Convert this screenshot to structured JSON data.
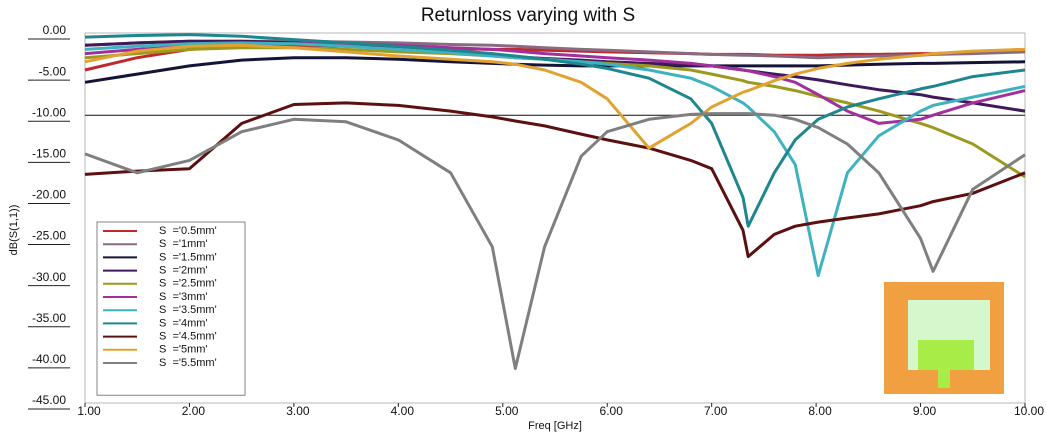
{
  "chart_data": {
    "type": "line",
    "title": "Returnloss varying with S",
    "x_label": "Freq [GHz]",
    "y_label": "dB(S(1,1))",
    "x": [
      1,
      1.5,
      2,
      2.5,
      3,
      3.5,
      4,
      4.5,
      4.9,
      5.12,
      5.4,
      5.75,
      6,
      6.4,
      6.8,
      7,
      7.3,
      7.35,
      7.6,
      7.8,
      8.02,
      8.3,
      8.6,
      9,
      9.12,
      9.5,
      10
    ],
    "series": [
      {
        "name": "S  ='0.5mm'",
        "color": "#c0282e",
        "values": [
          -4.5,
          -3,
          -2,
          -1.6,
          -1.5,
          -1.6,
          -1.8,
          -1.9,
          -2,
          -2,
          -2.1,
          -2.2,
          -2.3,
          -2.4,
          -2.5,
          -2.6,
          -2.6,
          -2.6,
          -2.7,
          -2.7,
          -2.7,
          -2.6,
          -2.6,
          -2.5,
          -2.5,
          -2.3,
          -2
        ]
      },
      {
        "name": "S  ='1mm'",
        "color": "#8a6a7e",
        "values": [
          -1.5,
          -1.2,
          -1,
          -1,
          -1,
          -1.1,
          -1.2,
          -1.4,
          -1.5,
          -1.6,
          -1.8,
          -2,
          -2.1,
          -2.3,
          -2.5,
          -2.6,
          -2.7,
          -2.7,
          -2.8,
          -2.9,
          -3,
          -2.9,
          -2.8,
          -2.7,
          -2.6,
          -2.5,
          -2.3
        ]
      },
      {
        "name": "S  ='1.5mm'",
        "color": "#141438",
        "values": [
          -6,
          -5,
          -4,
          -3.3,
          -3,
          -3,
          -3.2,
          -3.5,
          -3.7,
          -3.8,
          -3.9,
          -4,
          -4,
          -4,
          -4,
          -4,
          -4,
          -4,
          -4,
          -4,
          -4,
          -3.9,
          -3.8,
          -3.7,
          -3.7,
          -3.6,
          -3.5
        ]
      },
      {
        "name": "S  ='2mm'",
        "color": "#3e1a5c",
        "values": [
          -1.5,
          -1.2,
          -1,
          -1,
          -1.2,
          -1.5,
          -2,
          -2.4,
          -2.7,
          -2.9,
          -3.1,
          -3.3,
          -3.5,
          -3.7,
          -3.9,
          -4,
          -4.5,
          -4.6,
          -5,
          -5.3,
          -5.7,
          -6.3,
          -6.9,
          -7.5,
          -7.8,
          -8.5,
          -9.5
        ]
      },
      {
        "name": "S  ='2.5mm'",
        "color": "#9c9a1e",
        "values": [
          -3,
          -2.5,
          -2,
          -1.8,
          -1.8,
          -2,
          -2.3,
          -2.5,
          -2.8,
          -3,
          -3.2,
          -3.5,
          -3.7,
          -4,
          -4.5,
          -5,
          -5.8,
          -6,
          -6.5,
          -7,
          -7.7,
          -8.5,
          -9.5,
          -11,
          -11.5,
          -13.5,
          -17.5
        ]
      },
      {
        "name": "S  ='3mm'",
        "color": "#a2309c",
        "values": [
          -2.5,
          -2,
          -1.6,
          -1.4,
          -1.3,
          -1.3,
          -1.5,
          -1.8,
          -2,
          -2.2,
          -2.5,
          -2.8,
          -3,
          -3.3,
          -3.7,
          -4,
          -4.5,
          -4.6,
          -5.3,
          -6,
          -7.5,
          -9.5,
          -11,
          -10.5,
          -10,
          -8.5,
          -7
        ]
      },
      {
        "name": "S  ='3.5mm'",
        "color": "#3fb2c2",
        "values": [
          -2,
          -1.6,
          -1.3,
          -1.2,
          -1.3,
          -1.6,
          -2,
          -2.4,
          -2.8,
          -3,
          -3.2,
          -3.5,
          -3.8,
          -4.5,
          -5.5,
          -6.5,
          -8.5,
          -9,
          -12,
          -16,
          -29.5,
          -17,
          -12.5,
          -9.5,
          -8.8,
          -7.8,
          -6.5
        ]
      },
      {
        "name": "S  ='4mm'",
        "color": "#1f8690",
        "values": [
          -0.5,
          -0.3,
          -0.2,
          -0.4,
          -0.8,
          -1.2,
          -1.6,
          -2.1,
          -2.5,
          -2.8,
          -3.2,
          -3.8,
          -4.3,
          -5.5,
          -8,
          -11,
          -20,
          -23.5,
          -17,
          -13,
          -10.5,
          -9,
          -8,
          -6.8,
          -6.5,
          -5.3,
          -4.5
        ]
      },
      {
        "name": "S  ='4.5mm'",
        "color": "#5c1010",
        "values": [
          -17.2,
          -16.8,
          -16.5,
          -11,
          -8.7,
          -8.5,
          -8.8,
          -9.5,
          -10.2,
          -10.7,
          -11.3,
          -12.3,
          -13,
          -14,
          -15.5,
          -16.5,
          -24,
          -27.2,
          -24.5,
          -23.5,
          -23,
          -22.5,
          -22,
          -21,
          -20.5,
          -19.5,
          -17
        ]
      },
      {
        "name": "S  ='5mm'",
        "color": "#e2a232",
        "values": [
          -3.5,
          -2.2,
          -1.6,
          -1.5,
          -1.8,
          -2.3,
          -2.8,
          -3.2,
          -3.5,
          -3.8,
          -4.5,
          -6,
          -8,
          -14,
          -11,
          -9,
          -7.2,
          -7,
          -5.8,
          -5,
          -4.3,
          -3.7,
          -3.2,
          -2.7,
          -2.5,
          -2.2,
          -2
        ]
      },
      {
        "name": "S  ='5.5mm'",
        "color": "#7f7f7f",
        "values": [
          -14.7,
          -17,
          -15.5,
          -12,
          -10.5,
          -10.8,
          -13,
          -17,
          -26,
          -40.8,
          -26,
          -15,
          -12,
          -10.5,
          -9.9,
          -9.8,
          -9.8,
          -9.8,
          -10,
          -10.5,
          -11.5,
          -13.5,
          -17,
          -25,
          -29,
          -19,
          -14.8
        ]
      }
    ],
    "xlim": [
      1,
      10
    ],
    "ylim": [
      -45,
      0
    ],
    "xticks": [
      {
        "value": 1,
        "label": "1.00"
      },
      {
        "value": 2,
        "label": "2.00"
      },
      {
        "value": 3,
        "label": "3.00"
      },
      {
        "value": 4,
        "label": "4.00"
      },
      {
        "value": 5,
        "label": "5.00"
      },
      {
        "value": 6,
        "label": "6.00"
      },
      {
        "value": 7,
        "label": "7.00"
      },
      {
        "value": 8,
        "label": "8.00"
      },
      {
        "value": 9,
        "label": "9.00"
      },
      {
        "value": 10,
        "label": "10.00"
      }
    ],
    "yticks": [
      {
        "value": 0,
        "label": "0.00"
      },
      {
        "value": -5,
        "label": "-5.00"
      },
      {
        "value": -10,
        "label": "-10.00"
      },
      {
        "value": -15,
        "label": "-15.00"
      },
      {
        "value": -20,
        "label": "-20.00"
      },
      {
        "value": -25,
        "label": "-25.00"
      },
      {
        "value": -30,
        "label": "-30.00"
      },
      {
        "value": -35,
        "label": "-35.00"
      },
      {
        "value": -40,
        "label": "-40.00"
      },
      {
        "value": -45,
        "label": "-45.00"
      }
    ],
    "reference_line": -10,
    "grid": false,
    "legend": "lower-left"
  }
}
